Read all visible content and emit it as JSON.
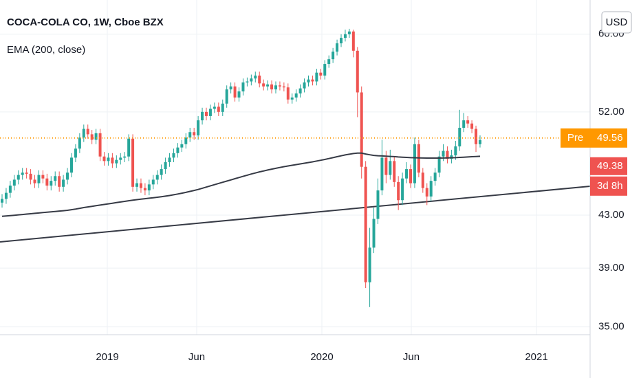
{
  "chart_data": {
    "type": "candlestick",
    "title": "COCA-COLA CO, 1W, Cboe BZX",
    "currency": "USD",
    "log_scale": true,
    "grid": true,
    "ylim": [
      34.5,
      63.9
    ],
    "yticks": [
      {
        "value": 35,
        "label": "35.00"
      },
      {
        "value": 39,
        "label": "39.00"
      },
      {
        "value": 43,
        "label": "43.00"
      },
      {
        "value": 52,
        "label": "52.00"
      },
      {
        "value": 60,
        "label": "60.00"
      }
    ],
    "xlim": [
      "2018-07",
      "2021-04"
    ],
    "xticks": [
      {
        "value": "2019-01",
        "label": "2019"
      },
      {
        "value": "2019-06",
        "label": "Jun"
      },
      {
        "value": "2020-01",
        "label": "2020"
      },
      {
        "value": "2020-06",
        "label": "Jun"
      },
      {
        "value": "2021-01",
        "label": "2021"
      }
    ],
    "categories": [
      null,
      null,
      null,
      null,
      null,
      null,
      null,
      null,
      null,
      null,
      null,
      null,
      null,
      null,
      null,
      null,
      null,
      null,
      null,
      null,
      null,
      null,
      null,
      null,
      null,
      null,
      null,
      null,
      null,
      null,
      null,
      null,
      null,
      null,
      null,
      null,
      null,
      null,
      null,
      null,
      null,
      null,
      null,
      null,
      null,
      null,
      null,
      null,
      null,
      null,
      null,
      null,
      null,
      null,
      null,
      null,
      null,
      null,
      null,
      null,
      null,
      null,
      null,
      null,
      null,
      null,
      null,
      null,
      null,
      null,
      null,
      null,
      null,
      null,
      null,
      null,
      null,
      null,
      null,
      null,
      null,
      null,
      null,
      null,
      null,
      null,
      null,
      null,
      null,
      null,
      null,
      null,
      null,
      null,
      null,
      null,
      null,
      null,
      null,
      null,
      null,
      null,
      null,
      null,
      null,
      null,
      null,
      null,
      null,
      null,
      null,
      null,
      null,
      null,
      null,
      null,
      null,
      null
    ],
    "up_color": "#26a69a",
    "down_color": "#ef5350",
    "open": [
      44.0,
      44.3,
      44.8,
      45.4,
      45.9,
      46.3,
      46.5,
      46.4,
      45.9,
      45.6,
      46.3,
      46.0,
      45.4,
      45.8,
      46.2,
      45.3,
      45.9,
      46.5,
      47.8,
      48.6,
      49.6,
      50.4,
      49.9,
      49.4,
      50.0,
      47.9,
      47.5,
      47.8,
      47.3,
      47.6,
      47.8,
      47.9,
      49.5,
      45.3,
      45.6,
      45.2,
      45.0,
      45.5,
      45.9,
      46.3,
      46.8,
      47.4,
      47.8,
      48.2,
      48.7,
      49.0,
      49.6,
      50.1,
      49.8,
      51.2,
      52.0,
      51.6,
      52.3,
      52.5,
      52.0,
      52.8,
      54.2,
      54.5,
      53.4,
      54.0,
      54.9,
      55.0,
      55.3,
      55.6,
      54.8,
      54.5,
      54.7,
      54.2,
      54.6,
      54.5,
      54.4,
      53.2,
      53.4,
      53.8,
      54.3,
      54.9,
      55.2,
      55.0,
      55.9,
      55.6,
      56.8,
      57.3,
      58.1,
      59.0,
      59.6,
      60.0,
      60.3,
      58.2,
      53.9,
      47.0,
      38.0,
      40.5,
      42.7,
      45.0,
      47.8,
      46.3,
      47.5,
      45.7,
      44.2,
      46.0,
      46.8,
      45.6,
      49.0,
      46.5,
      45.2,
      44.5,
      45.8,
      46.5,
      47.9,
      48.4,
      47.7,
      48.0,
      48.8,
      50.5,
      51.2,
      50.9,
      50.4,
      49.0
    ],
    "high": [
      44.7,
      45.2,
      45.8,
      46.3,
      46.7,
      46.9,
      46.9,
      46.8,
      46.3,
      46.7,
      46.7,
      46.4,
      46.2,
      46.6,
      46.6,
      46.3,
      46.9,
      48.2,
      49.0,
      50.0,
      50.8,
      50.8,
      50.3,
      50.4,
      50.4,
      48.3,
      48.2,
      48.2,
      48.0,
      48.2,
      48.3,
      49.9,
      49.9,
      46.0,
      46.0,
      45.6,
      45.9,
      46.3,
      46.7,
      47.2,
      47.8,
      48.2,
      48.6,
      49.1,
      49.4,
      50.0,
      50.5,
      50.5,
      51.6,
      52.4,
      52.4,
      52.7,
      52.9,
      52.9,
      53.2,
      54.6,
      54.9,
      54.9,
      54.4,
      55.3,
      55.4,
      55.7,
      56.0,
      56.0,
      55.2,
      55.1,
      55.1,
      55.0,
      55.0,
      54.9,
      54.8,
      53.8,
      54.2,
      54.7,
      55.3,
      55.6,
      55.6,
      56.3,
      56.3,
      57.2,
      57.7,
      58.5,
      59.4,
      60.0,
      60.5,
      60.6,
      60.5,
      58.6,
      54.5,
      47.5,
      42.0,
      43.6,
      46.0,
      49.4,
      48.4,
      48.5,
      47.9,
      46.2,
      46.5,
      47.4,
      47.2,
      49.6,
      49.4,
      46.9,
      45.6,
      46.2,
      46.9,
      48.4,
      49.0,
      48.8,
      48.5,
      49.3,
      52.2,
      51.9,
      51.6,
      51.2,
      50.7,
      49.8
    ],
    "low": [
      43.6,
      43.9,
      44.4,
      45.0,
      45.5,
      45.9,
      46.0,
      45.5,
      45.2,
      45.2,
      45.6,
      45.0,
      45.0,
      45.4,
      44.9,
      44.9,
      45.5,
      46.1,
      47.4,
      48.2,
      49.2,
      49.5,
      49.0,
      49.0,
      47.5,
      47.1,
      47.1,
      46.9,
      46.9,
      47.2,
      47.4,
      47.5,
      44.9,
      44.9,
      44.8,
      44.6,
      44.6,
      45.1,
      45.5,
      45.9,
      46.4,
      47.0,
      47.4,
      47.8,
      48.3,
      48.6,
      49.2,
      49.4,
      49.4,
      50.8,
      51.2,
      51.2,
      51.9,
      51.6,
      51.6,
      52.4,
      53.8,
      53.0,
      53.0,
      53.6,
      54.5,
      54.6,
      54.9,
      54.4,
      54.1,
      54.1,
      53.8,
      53.8,
      54.1,
      54.0,
      52.8,
      52.8,
      53.0,
      53.4,
      53.9,
      54.5,
      54.6,
      54.6,
      55.2,
      55.2,
      56.4,
      56.9,
      57.7,
      58.6,
      59.2,
      59.6,
      57.5,
      51.5,
      46.0,
      37.6,
      36.3,
      40.1,
      42.3,
      44.6,
      45.6,
      45.9,
      45.3,
      43.4,
      43.8,
      45.6,
      45.2,
      45.2,
      46.1,
      44.8,
      43.8,
      44.1,
      45.4,
      46.1,
      47.5,
      47.3,
      47.3,
      47.6,
      48.4,
      50.1,
      50.5,
      50.0,
      48.3,
      48.7
    ],
    "close": [
      44.3,
      44.8,
      45.4,
      45.9,
      46.3,
      46.5,
      46.4,
      45.9,
      45.6,
      46.3,
      46.0,
      45.4,
      45.8,
      46.2,
      45.3,
      45.9,
      46.5,
      47.8,
      48.6,
      49.6,
      50.4,
      49.9,
      49.4,
      50.0,
      47.9,
      47.5,
      47.8,
      47.3,
      47.6,
      47.8,
      47.9,
      49.5,
      45.3,
      45.6,
      45.2,
      45.0,
      45.5,
      45.9,
      46.3,
      46.8,
      47.4,
      47.8,
      48.2,
      48.7,
      49.0,
      49.6,
      50.1,
      49.8,
      51.2,
      52.0,
      51.6,
      52.3,
      52.5,
      52.0,
      52.8,
      54.2,
      54.5,
      53.4,
      54.0,
      54.9,
      55.0,
      55.3,
      55.6,
      54.8,
      54.5,
      54.7,
      54.2,
      54.6,
      54.5,
      54.4,
      53.2,
      53.4,
      53.8,
      54.3,
      54.9,
      55.2,
      55.0,
      55.9,
      55.6,
      56.8,
      57.3,
      58.1,
      59.0,
      59.6,
      60.0,
      60.3,
      58.2,
      53.9,
      47.0,
      38.0,
      40.5,
      42.7,
      45.0,
      47.8,
      46.3,
      47.5,
      45.7,
      44.2,
      46.0,
      46.8,
      45.6,
      49.0,
      46.5,
      45.2,
      44.5,
      45.8,
      46.5,
      47.9,
      48.4,
      47.7,
      48.0,
      48.8,
      50.5,
      51.2,
      50.9,
      50.4,
      49.0,
      49.38
    ],
    "series": [
      {
        "name": "EMA (200, close)",
        "color": "#363a45",
        "values": [
          42.9,
          42.93,
          42.96,
          42.99,
          43.02,
          43.05,
          43.08,
          43.11,
          43.14,
          43.17,
          43.2,
          43.23,
          43.26,
          43.29,
          43.32,
          43.35,
          43.38,
          43.43,
          43.48,
          43.54,
          43.6,
          43.65,
          43.7,
          43.75,
          43.8,
          43.85,
          43.9,
          43.95,
          44.0,
          44.05,
          44.1,
          44.15,
          44.2,
          44.24,
          44.28,
          44.32,
          44.36,
          44.4,
          44.44,
          44.48,
          44.53,
          44.58,
          44.64,
          44.7,
          44.77,
          44.84,
          44.92,
          45.0,
          45.08,
          45.18,
          45.28,
          45.38,
          45.48,
          45.58,
          45.68,
          45.78,
          45.88,
          45.98,
          46.08,
          46.18,
          46.28,
          46.38,
          46.47,
          46.56,
          46.64,
          46.72,
          46.8,
          46.87,
          46.94,
          47.01,
          47.07,
          47.13,
          47.19,
          47.25,
          47.31,
          47.37,
          47.43,
          47.5,
          47.57,
          47.64,
          47.72,
          47.8,
          47.88,
          47.96,
          48.04,
          48.1,
          48.16,
          48.2,
          48.2,
          48.12,
          48.05,
          48.0,
          47.97,
          47.95,
          47.93,
          47.91,
          47.89,
          47.86,
          47.84,
          47.82,
          47.8,
          47.79,
          47.78,
          47.77,
          47.76,
          47.76,
          47.76,
          47.76,
          47.77,
          47.78,
          47.79,
          47.8,
          47.82,
          47.84,
          47.86,
          47.88,
          47.9,
          47.92
        ]
      }
    ],
    "pre_market": {
      "label": "Pre",
      "value": 49.56,
      "color": "#ff9800"
    },
    "last_price": 49.38,
    "countdown": "3d 8h"
  }
}
